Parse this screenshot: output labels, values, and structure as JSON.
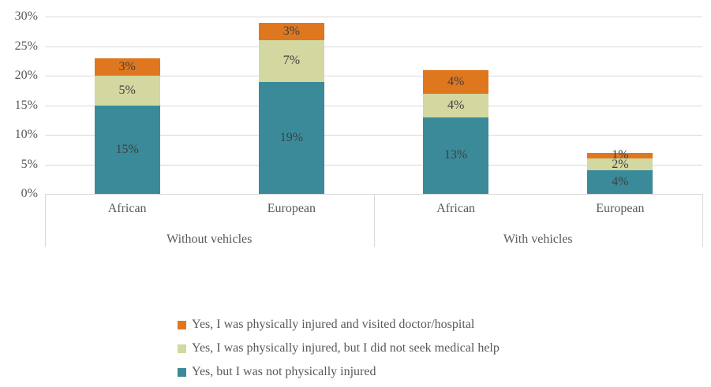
{
  "chart_data": {
    "type": "bar",
    "stacked": true,
    "title": "",
    "xlabel": "",
    "ylabel": "",
    "ylim": [
      0,
      30
    ],
    "y_ticks": [
      "0%",
      "5%",
      "10%",
      "15%",
      "20%",
      "25%",
      "30%"
    ],
    "grid": true,
    "legend_position": "bottom",
    "group_labels": [
      "Without vehicles",
      "With vehicles"
    ],
    "categories": [
      "African",
      "European",
      "African",
      "European"
    ],
    "series": [
      {
        "name": "Yes, but I was not physically injured",
        "color": "#3A8A99",
        "values": [
          15,
          19,
          13,
          4
        ]
      },
      {
        "name": "Yes, I was physically injured, but I did not seek medical help",
        "color": "#D3D7A0",
        "values": [
          5,
          7,
          4,
          2
        ]
      },
      {
        "name": "Yes,  I was physically injured and visited doctor/hospital",
        "color": "#DF771F",
        "values": [
          3,
          3,
          4,
          1
        ]
      }
    ],
    "data_label_suffix": "%"
  },
  "legend": {
    "items": [
      {
        "label": "Yes,  I was physically injured and visited doctor/hospital",
        "color": "#DF771F"
      },
      {
        "label": "Yes, I was physically injured, but I did not seek medical help",
        "color": "#D3D7A0"
      },
      {
        "label": "Yes, but I was not physically injured",
        "color": "#3A8A99"
      }
    ]
  },
  "colors": {
    "background": "#FFFFFF",
    "gridline": "#D9D9D9",
    "axis_text": "#595959",
    "data_label": "#404040"
  }
}
